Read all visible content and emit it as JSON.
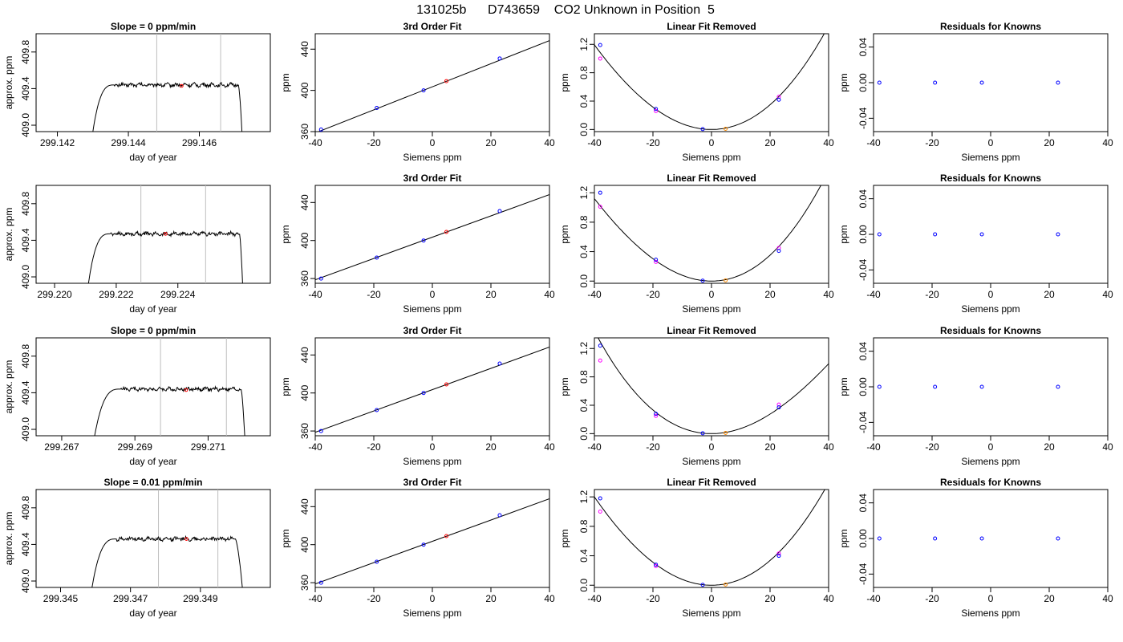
{
  "figure_title": "131025b      D743659    CO2 Unknown in Position  5",
  "colors": {
    "line": "#000000",
    "vline": "#bebebe",
    "known": "#0000ff",
    "known_alt": "#ff00ff",
    "unknown": "#ff8c00",
    "marker_red": "#ff0000"
  },
  "chart_data": [
    {
      "type": "line",
      "row": 0,
      "col": 0,
      "title": "Slope =  0  ppm/min",
      "xlabel": "day of year",
      "ylabel": "approx. ppm",
      "xlim": [
        299.1414,
        299.148
      ],
      "ylim": [
        408.93,
        410.0
      ],
      "xticks": [
        "299.142",
        "299.144",
        "299.146"
      ],
      "yticks": [
        "409.0",
        "409.4",
        "409.8"
      ],
      "vlines": [
        299.1448,
        299.1466
      ],
      "marker": [
        299.1455,
        409.43
      ],
      "trace": {
        "start": 299.143,
        "rise_end": 299.1436,
        "end": 299.1472,
        "fall_start": 299.1471,
        "base": 408.93,
        "plateau": 409.44
      }
    },
    {
      "type": "scatter",
      "row": 0,
      "col": 1,
      "title": "3rd Order Fit",
      "xlabel": "Siemens ppm",
      "ylabel": "ppm",
      "xlim": [
        -40,
        40
      ],
      "ylim": [
        360,
        455
      ],
      "xticks": [
        "-40",
        "-20",
        "0",
        "20",
        "40"
      ],
      "yticks": [
        "360",
        "400",
        "440"
      ],
      "knowns": {
        "x": [
          -38,
          -19,
          -3,
          23
        ],
        "y": [
          362,
          383,
          400,
          431
        ]
      },
      "unknown": {
        "x": [
          4.8
        ],
        "y": [
          409
        ]
      },
      "fit": {
        "slope": 1.12,
        "intercept": 403.5
      }
    },
    {
      "type": "scatter",
      "row": 0,
      "col": 2,
      "title": "Linear Fit Removed",
      "xlabel": "Siemens ppm",
      "ylabel": "ppm",
      "xlim": [
        -40,
        40
      ],
      "ylim": [
        -0.03,
        1.35
      ],
      "xticks": [
        "-40",
        "-20",
        "0",
        "20",
        "40"
      ],
      "yticks": [
        "0.0",
        "0.4",
        "0.8",
        "1.2"
      ],
      "knowns": {
        "x": [
          -38,
          -19,
          -3,
          23
        ],
        "y": [
          1.19,
          0.29,
          0.005,
          0.42
        ]
      },
      "knowns_alt": {
        "x": [
          -38,
          -19,
          23
        ],
        "y": [
          1.0,
          0.26,
          0.46
        ]
      },
      "unknown": {
        "x": [
          4.8
        ],
        "y": [
          0.01
        ]
      },
      "curve": {
        "vertex": 0,
        "a": 0.00083,
        "b": 2.1e-06
      }
    },
    {
      "type": "scatter",
      "row": 0,
      "col": 3,
      "title": "Residuals for Knowns",
      "xlabel": "Siemens ppm",
      "ylabel": "ppm",
      "xlim": [
        -40,
        40
      ],
      "ylim": [
        -0.055,
        0.055
      ],
      "xticks": [
        "-40",
        "-20",
        "0",
        "20",
        "40"
      ],
      "yticks": [
        "-0.04",
        "0.00",
        "0.04"
      ],
      "knowns": {
        "x": [
          -38,
          -19,
          -3,
          23
        ],
        "y": [
          0,
          0,
          0,
          0
        ]
      }
    },
    {
      "type": "line",
      "row": 1,
      "col": 0,
      "title": "",
      "xlabel": "day of year",
      "ylabel": "approx. ppm",
      "xlim": [
        299.2194,
        299.227
      ],
      "ylim": [
        408.93,
        410.0
      ],
      "xticks": [
        "299.220",
        "299.222",
        "299.224"
      ],
      "yticks": [
        "409.0",
        "409.4",
        "409.8"
      ],
      "vlines": [
        299.2228,
        299.2249
      ],
      "marker": [
        299.2236,
        409.47
      ],
      "trace": {
        "start": 299.2211,
        "rise_end": 299.2218,
        "end": 299.2261,
        "fall_start": 299.226,
        "base": 408.93,
        "plateau": 409.47
      }
    },
    {
      "type": "scatter",
      "row": 1,
      "col": 1,
      "title": "3rd Order Fit",
      "xlabel": "Siemens ppm",
      "ylabel": "ppm",
      "xlim": [
        -40,
        40
      ],
      "ylim": [
        355,
        458
      ],
      "xticks": [
        "-40",
        "-20",
        "0",
        "20",
        "40"
      ],
      "yticks": [
        "360",
        "400",
        "440"
      ],
      "knowns": {
        "x": [
          -38,
          -19,
          -3,
          23
        ],
        "y": [
          360,
          382,
          400,
          431
        ]
      },
      "unknown": {
        "x": [
          4.8
        ],
        "y": [
          409
        ]
      },
      "fit": {
        "slope": 1.12,
        "intercept": 403.5
      }
    },
    {
      "type": "scatter",
      "row": 1,
      "col": 2,
      "title": "Linear Fit Removed",
      "xlabel": "Siemens ppm",
      "ylabel": "ppm",
      "xlim": [
        -40,
        40
      ],
      "ylim": [
        -0.03,
        1.3
      ],
      "xticks": [
        "-40",
        "-20",
        "0",
        "20",
        "40"
      ],
      "yticks": [
        "0.0",
        "0.4",
        "0.8",
        "1.2"
      ],
      "knowns": {
        "x": [
          -38,
          -19,
          -3,
          23
        ],
        "y": [
          1.2,
          0.29,
          0.005,
          0.41
        ]
      },
      "knowns_alt": {
        "x": [
          -38,
          -19,
          23
        ],
        "y": [
          1.01,
          0.26,
          0.45
        ]
      },
      "unknown": {
        "x": [
          4.8
        ],
        "y": [
          0.01
        ]
      },
      "curve": {
        "vertex": 0,
        "a": 0.00082,
        "b": 3e-06
      }
    },
    {
      "type": "scatter",
      "row": 1,
      "col": 3,
      "title": "Residuals for Knowns",
      "xlabel": "Siemens ppm",
      "ylabel": "ppm",
      "xlim": [
        -40,
        40
      ],
      "ylim": [
        -0.055,
        0.055
      ],
      "xticks": [
        "-40",
        "-20",
        "0",
        "20",
        "40"
      ],
      "yticks": [
        "-0.04",
        "0.00",
        "0.04"
      ],
      "knowns": {
        "x": [
          -38,
          -19,
          -3,
          23
        ],
        "y": [
          0,
          0,
          0,
          0
        ]
      }
    },
    {
      "type": "line",
      "row": 2,
      "col": 0,
      "title": "Slope =  0  ppm/min",
      "xlabel": "day of year",
      "ylabel": "approx. ppm",
      "xlim": [
        299.2663,
        299.2727
      ],
      "ylim": [
        408.93,
        410.0
      ],
      "xticks": [
        "299.267",
        "299.269",
        "299.271"
      ],
      "yticks": [
        "409.0",
        "409.4",
        "409.8"
      ],
      "vlines": [
        299.2697,
        299.2715
      ],
      "marker": [
        299.2704,
        409.43
      ],
      "trace": {
        "start": 299.2679,
        "rise_end": 299.2686,
        "end": 299.272,
        "fall_start": 299.2719,
        "base": 408.93,
        "plateau": 409.44
      }
    },
    {
      "type": "scatter",
      "row": 2,
      "col": 1,
      "title": "3rd Order Fit",
      "xlabel": "Siemens ppm",
      "ylabel": "ppm",
      "xlim": [
        -40,
        40
      ],
      "ylim": [
        355,
        458
      ],
      "xticks": [
        "-40",
        "-20",
        "0",
        "20",
        "40"
      ],
      "yticks": [
        "360",
        "400",
        "440"
      ],
      "knowns": {
        "x": [
          -38,
          -19,
          -3,
          23
        ],
        "y": [
          360,
          382,
          400,
          431
        ]
      },
      "unknown": {
        "x": [
          4.8
        ],
        "y": [
          409
        ]
      },
      "fit": {
        "slope": 1.12,
        "intercept": 403.5
      }
    },
    {
      "type": "scatter",
      "row": 2,
      "col": 2,
      "title": "Linear Fit Removed",
      "xlabel": "Siemens ppm",
      "ylabel": "ppm",
      "xlim": [
        -40,
        40
      ],
      "ylim": [
        -0.03,
        1.35
      ],
      "xticks": [
        "-40",
        "-20",
        "0",
        "20",
        "40"
      ],
      "yticks": [
        "0.0",
        "0.4",
        "0.8",
        "1.2"
      ],
      "knowns": {
        "x": [
          -38,
          -19,
          -3,
          23
        ],
        "y": [
          1.24,
          0.28,
          0.005,
          0.37
        ]
      },
      "knowns_alt": {
        "x": [
          -38,
          -19,
          23
        ],
        "y": [
          1.03,
          0.25,
          0.41
        ]
      },
      "unknown": {
        "x": [
          4.8
        ],
        "y": [
          0.01
        ]
      },
      "curve": {
        "vertex": 0,
        "a": 0.00076,
        "b": -3.6e-06
      }
    },
    {
      "type": "scatter",
      "row": 2,
      "col": 3,
      "title": "Residuals for Knowns",
      "xlabel": "Siemens ppm",
      "ylabel": "ppm",
      "xlim": [
        -40,
        40
      ],
      "ylim": [
        -0.055,
        0.055
      ],
      "xticks": [
        "-40",
        "-20",
        "0",
        "20",
        "40"
      ],
      "yticks": [
        "-0.04",
        "0.00",
        "0.04"
      ],
      "knowns": {
        "x": [
          -38,
          -19,
          -3,
          23
        ],
        "y": [
          0,
          0,
          0,
          0
        ]
      }
    },
    {
      "type": "line",
      "row": 3,
      "col": 0,
      "title": "Slope =  0.01  ppm/min",
      "xlabel": "day of year",
      "ylabel": "approx. ppm",
      "xlim": [
        299.3443,
        299.351
      ],
      "ylim": [
        408.93,
        410.0
      ],
      "xticks": [
        "299.345",
        "299.347",
        "299.349"
      ],
      "yticks": [
        "409.0",
        "409.4",
        "409.8"
      ],
      "vlines": [
        299.3478,
        299.3495
      ],
      "marker": [
        299.3486,
        409.46
      ],
      "trace": {
        "start": 299.3459,
        "rise_end": 299.3466,
        "end": 299.3502,
        "fall_start": 299.35,
        "base": 408.93,
        "plateau": 409.46
      }
    },
    {
      "type": "scatter",
      "row": 3,
      "col": 1,
      "title": "3rd Order Fit",
      "xlabel": "Siemens ppm",
      "ylabel": "ppm",
      "xlim": [
        -40,
        40
      ],
      "ylim": [
        355,
        458
      ],
      "xticks": [
        "-40",
        "-20",
        "0",
        "20",
        "40"
      ],
      "yticks": [
        "360",
        "400",
        "440"
      ],
      "knowns": {
        "x": [
          -38,
          -19,
          -3,
          23
        ],
        "y": [
          360,
          382,
          400,
          431
        ]
      },
      "unknown": {
        "x": [
          4.8
        ],
        "y": [
          409
        ]
      },
      "fit": {
        "slope": 1.12,
        "intercept": 403.5
      }
    },
    {
      "type": "scatter",
      "row": 3,
      "col": 2,
      "title": "Linear Fit Removed",
      "xlabel": "Siemens ppm",
      "ylabel": "ppm",
      "xlim": [
        -40,
        40
      ],
      "ylim": [
        -0.03,
        1.3
      ],
      "xticks": [
        "-40",
        "-20",
        "0",
        "20",
        "40"
      ],
      "yticks": [
        "0.0",
        "0.4",
        "0.8",
        "1.2"
      ],
      "knowns": {
        "x": [
          -38,
          -19,
          -3,
          23
        ],
        "y": [
          1.18,
          0.28,
          0.005,
          0.4
        ]
      },
      "knowns_alt": {
        "x": [
          -38,
          -19,
          23
        ],
        "y": [
          1.0,
          0.26,
          0.43
        ]
      },
      "unknown": {
        "x": [
          4.8
        ],
        "y": [
          0.01
        ]
      },
      "curve": {
        "vertex": 0,
        "a": 0.00081,
        "b": 1.5e-06
      }
    },
    {
      "type": "scatter",
      "row": 3,
      "col": 3,
      "title": "Residuals for Knowns",
      "xlabel": "Siemens ppm",
      "ylabel": "ppm",
      "xlim": [
        -40,
        40
      ],
      "ylim": [
        -0.055,
        0.055
      ],
      "xticks": [
        "-40",
        "-20",
        "0",
        "20",
        "40"
      ],
      "yticks": [
        "-0.04",
        "0.00",
        "0.04"
      ],
      "knowns": {
        "x": [
          -38,
          -19,
          -3,
          23
        ],
        "y": [
          0,
          0,
          0,
          0
        ]
      }
    }
  ]
}
